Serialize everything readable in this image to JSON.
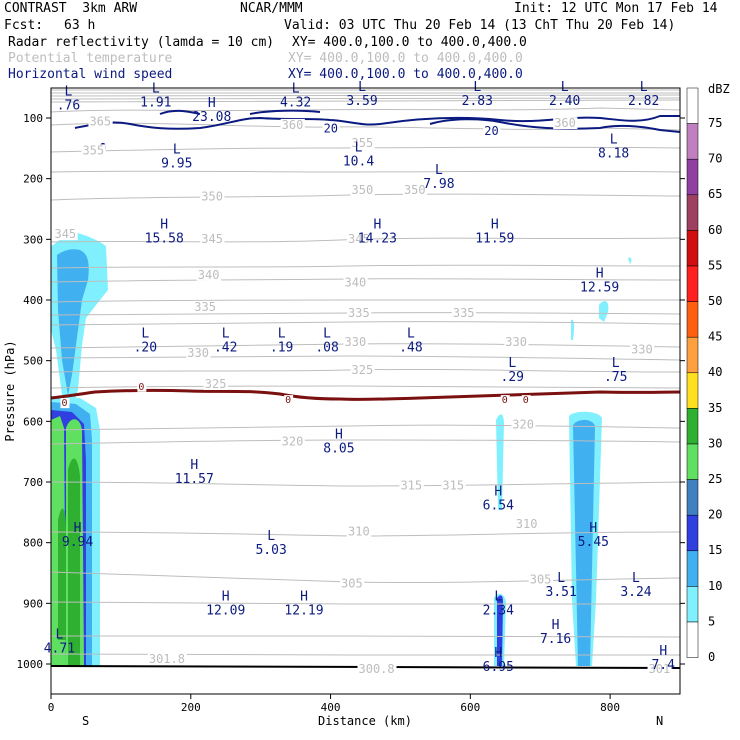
{
  "header": {
    "model": "CONTRAST  3km ARW",
    "center": "NCAR/MMM",
    "init": "Init: 12 UTC Mon 17 Feb 14",
    "fcst_label": "Fcst:",
    "fcst_value": "63 h",
    "valid": "Valid: 03 UTC Thu 20 Feb 14 (13 ChT Thu 20 Feb 14)",
    "fields": [
      {
        "name": "Radar reflectivity (lamda = 10 cm)",
        "xy": "XY= 400.0,100.0 to 400.0,400.0",
        "color": "#000000"
      },
      {
        "name": "Potential temperature",
        "xy": "XY= 400.0,100.0 to 400.0,400.0",
        "color": "#bdbdbd"
      },
      {
        "name": "Horizontal wind speed",
        "xy": "XY= 400.0,100.0 to 400.0,400.0",
        "color": "#0b1a80"
      }
    ]
  },
  "chart_data": {
    "type": "cross-section",
    "xlabel": "Distance (km)",
    "ylabel": "Pressure (hPa)",
    "xlim": [
      0,
      900
    ],
    "ylim": [
      1000,
      60
    ],
    "x_ticks": [
      "0",
      "200",
      "400",
      "600",
      "800"
    ],
    "x_tick_values": [
      0,
      200,
      400,
      600,
      800
    ],
    "y_ticks": [
      "100",
      "200",
      "300",
      "400",
      "500",
      "600",
      "700",
      "800",
      "900",
      "1000"
    ],
    "y_tick_values": [
      100,
      200,
      300,
      400,
      500,
      600,
      700,
      800,
      900,
      1000
    ],
    "x_end_labels": {
      "left": "S",
      "right": "N"
    },
    "colorbar": {
      "unit": "dBZ",
      "levels": [
        "75",
        "70",
        "65",
        "60",
        "55",
        "50",
        "45",
        "40",
        "35",
        "30",
        "25",
        "20",
        "15",
        "10",
        "5",
        "0"
      ],
      "colors": [
        "#ffffff",
        "#c080c0",
        "#9040a0",
        "#a04060",
        "#d01010",
        "#ff2020",
        "#ff6010",
        "#ffa040",
        "#ffe020",
        "#30b030",
        "#60e060",
        "#4080c0",
        "#3040e0",
        "#40b0f0",
        "#80f0ff",
        "#ffffff"
      ]
    },
    "theta_labels": [
      {
        "text": "365",
        "x": 55,
        "p": 112
      },
      {
        "text": "360",
        "x": 330,
        "p": 118
      },
      {
        "text": "360",
        "x": 720,
        "p": 115
      },
      {
        "text": "355",
        "x": 45,
        "p": 160
      },
      {
        "text": "355",
        "x": 430,
        "p": 148
      },
      {
        "text": "350",
        "x": 215,
        "p": 236
      },
      {
        "text": "350",
        "x": 430,
        "p": 225
      },
      {
        "text": "350",
        "x": 505,
        "p": 225
      },
      {
        "text": "345",
        "x": 5,
        "p": 298
      },
      {
        "text": "345",
        "x": 215,
        "p": 306
      },
      {
        "text": "345",
        "x": 425,
        "p": 306
      },
      {
        "text": "340",
        "x": 210,
        "p": 365
      },
      {
        "text": "340",
        "x": 420,
        "p": 378
      },
      {
        "text": "335",
        "x": 205,
        "p": 418
      },
      {
        "text": "335",
        "x": 425,
        "p": 428
      },
      {
        "text": "335",
        "x": 575,
        "p": 428
      },
      {
        "text": "330",
        "x": 195,
        "p": 494
      },
      {
        "text": "330",
        "x": 420,
        "p": 476
      },
      {
        "text": "330",
        "x": 650,
        "p": 476
      },
      {
        "text": "330",
        "x": 830,
        "p": 488
      },
      {
        "text": "325",
        "x": 220,
        "p": 545
      },
      {
        "text": "325",
        "x": 430,
        "p": 522
      },
      {
        "text": "320",
        "x": 330,
        "p": 640
      },
      {
        "text": "320",
        "x": 660,
        "p": 612
      },
      {
        "text": "315",
        "x": 500,
        "p": 712
      },
      {
        "text": "315",
        "x": 560,
        "p": 712
      },
      {
        "text": "310",
        "x": 425,
        "p": 788
      },
      {
        "text": "310",
        "x": 665,
        "p": 776
      },
      {
        "text": "305",
        "x": 415,
        "p": 874
      },
      {
        "text": "305",
        "x": 685,
        "p": 867
      },
      {
        "text": "301.8",
        "x": 140,
        "p": 998
      },
      {
        "text": "300.8",
        "x": 440,
        "p": 1015
      },
      {
        "text": "301",
        "x": 855,
        "p": 1015
      }
    ],
    "wind_isotach_labels": [
      {
        "text": "20",
        "x": 390,
        "p": 124
      },
      {
        "text": "20",
        "x": 620,
        "p": 128
      }
    ],
    "melting_level_label": {
      "text": "0",
      "values": [
        {
          "x": 15,
          "p": 575
        },
        {
          "x": 125,
          "p": 548
        },
        {
          "x": 335,
          "p": 570
        },
        {
          "x": 645,
          "p": 570
        },
        {
          "x": 675,
          "p": 570
        }
      ]
    },
    "extrema": [
      {
        "type": "L",
        "value": ".76",
        "x": 25,
        "p": 86
      },
      {
        "type": "L",
        "value": "1.91",
        "x": 150,
        "p": 82
      },
      {
        "type": "H",
        "value": "23.08",
        "x": 230,
        "p": 102
      },
      {
        "type": "L",
        "value": "4.32",
        "x": 350,
        "p": 82
      },
      {
        "type": "L",
        "value": "3.59",
        "x": 445,
        "p": 80
      },
      {
        "type": "L",
        "value": "2.83",
        "x": 610,
        "p": 80
      },
      {
        "type": "L",
        "value": "2.40",
        "x": 735,
        "p": 80
      },
      {
        "type": "L",
        "value": "2.82",
        "x": 848,
        "p": 80
      },
      {
        "type": "L",
        "value": "9.95",
        "x": 180,
        "p": 178
      },
      {
        "type": "L",
        "value": "10.4",
        "x": 440,
        "p": 175
      },
      {
        "type": "L",
        "value": "7.98",
        "x": 555,
        "p": 212
      },
      {
        "type": "L",
        "value": "8.18",
        "x": 805,
        "p": 162
      },
      {
        "type": "H",
        "value": "15.58",
        "x": 162,
        "p": 302
      },
      {
        "type": "H",
        "value": "14.23",
        "x": 467,
        "p": 302
      },
      {
        "type": "H",
        "value": "11.59",
        "x": 635,
        "p": 302
      },
      {
        "type": "H",
        "value": "12.59",
        "x": 785,
        "p": 383
      },
      {
        "type": "L",
        "value": ".20",
        "x": 135,
        "p": 482
      },
      {
        "type": "L",
        "value": ".42",
        "x": 250,
        "p": 482
      },
      {
        "type": "L",
        "value": ".19",
        "x": 330,
        "p": 482
      },
      {
        "type": "L",
        "value": ".08",
        "x": 395,
        "p": 482
      },
      {
        "type": "L",
        "value": ".48",
        "x": 515,
        "p": 482
      },
      {
        "type": "L",
        "value": ".29",
        "x": 660,
        "p": 530
      },
      {
        "type": "L",
        "value": ".75",
        "x": 808,
        "p": 530
      },
      {
        "type": "H",
        "value": "8.05",
        "x": 412,
        "p": 648
      },
      {
        "type": "H",
        "value": "11.57",
        "x": 205,
        "p": 698
      },
      {
        "type": "H",
        "value": "6.54",
        "x": 640,
        "p": 742
      },
      {
        "type": "H",
        "value": "9.94",
        "x": 38,
        "p": 802
      },
      {
        "type": "H",
        "value": "5.45",
        "x": 776,
        "p": 802
      },
      {
        "type": "L",
        "value": "5.03",
        "x": 315,
        "p": 815
      },
      {
        "type": "H",
        "value": "12.09",
        "x": 250,
        "p": 915
      },
      {
        "type": "H",
        "value": "12.19",
        "x": 362,
        "p": 915
      },
      {
        "type": "L",
        "value": "2.34",
        "x": 640,
        "p": 915
      },
      {
        "type": "L",
        "value": "3.51",
        "x": 730,
        "p": 885
      },
      {
        "type": "L",
        "value": "3.24",
        "x": 837,
        "p": 885
      },
      {
        "type": "H",
        "value": "7.16",
        "x": 722,
        "p": 962
      },
      {
        "type": "L",
        "value": "4.71",
        "x": 12,
        "p": 978
      },
      {
        "type": "H",
        "value": "6.95",
        "x": 640,
        "p": 1008
      },
      {
        "type": "H",
        "value": "7.4",
        "x": 876,
        "p": 1005
      }
    ]
  }
}
